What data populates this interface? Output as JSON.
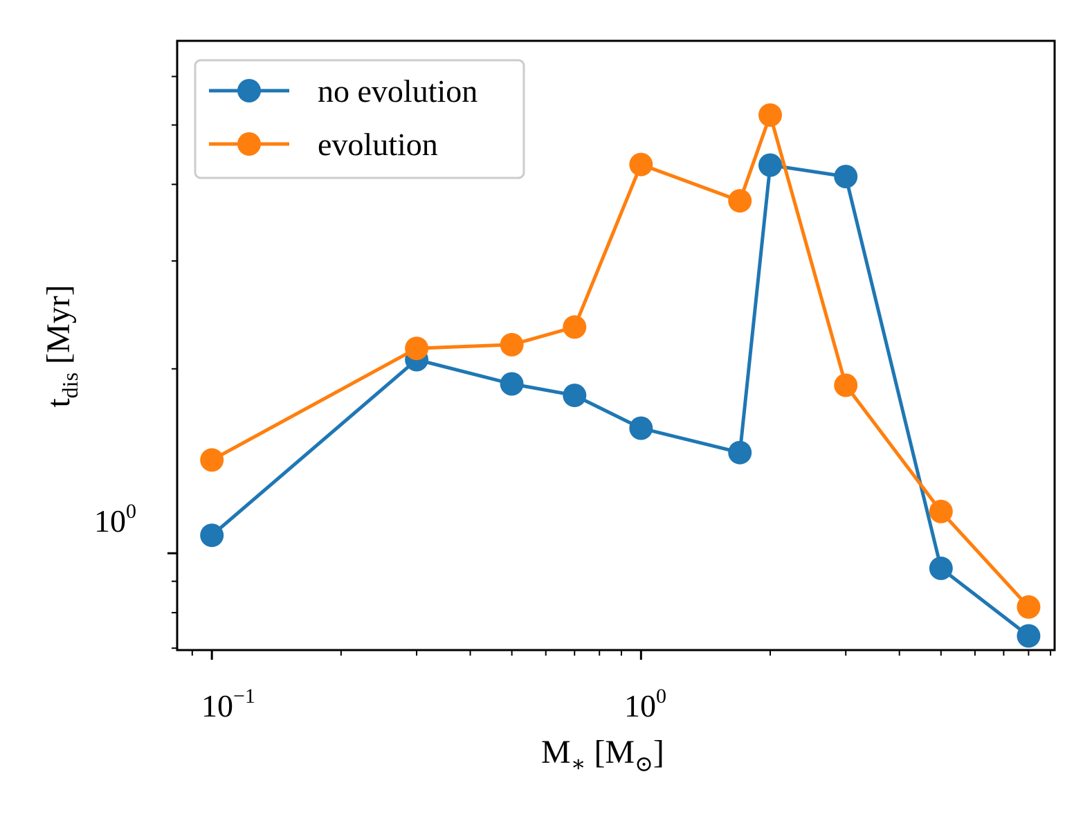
{
  "chart_data": {
    "type": "line",
    "x_scale": "log",
    "y_scale": "log",
    "xlabel": {
      "base": "M",
      "base_sub": "∗",
      "unit_open": "[M",
      "unit_sub": "⊙",
      "unit_close": "]"
    },
    "ylabel": {
      "base": "t",
      "sub": "dis",
      "unit": "[Myr]"
    },
    "xlim": [
      0.083,
      9.2
    ],
    "ylim": [
      0.695,
      6.86
    ],
    "x_major_ticks": [
      {
        "value": 0.1,
        "base": "10",
        "exp": "−1"
      },
      {
        "value": 1,
        "base": "10",
        "exp": "0"
      }
    ],
    "y_major_ticks": [
      {
        "value": 1,
        "base": "10",
        "exp": "0"
      }
    ],
    "x": [
      0.1,
      0.3,
      0.5,
      0.7,
      1.0,
      1.7,
      2.0,
      3.0,
      5.0,
      8.0
    ],
    "series": [
      {
        "name": "no evolution",
        "color": "#1f77b4",
        "values": [
          1.07,
          2.07,
          1.89,
          1.81,
          1.6,
          1.46,
          4.3,
          4.12,
          0.945,
          0.733
        ]
      },
      {
        "name": "evolution",
        "color": "#ff7f0e",
        "values": [
          1.42,
          2.16,
          2.19,
          2.34,
          4.31,
          3.76,
          5.19,
          1.88,
          1.17,
          0.817
        ]
      }
    ],
    "legend_position": "upper-left",
    "grid": false
  }
}
